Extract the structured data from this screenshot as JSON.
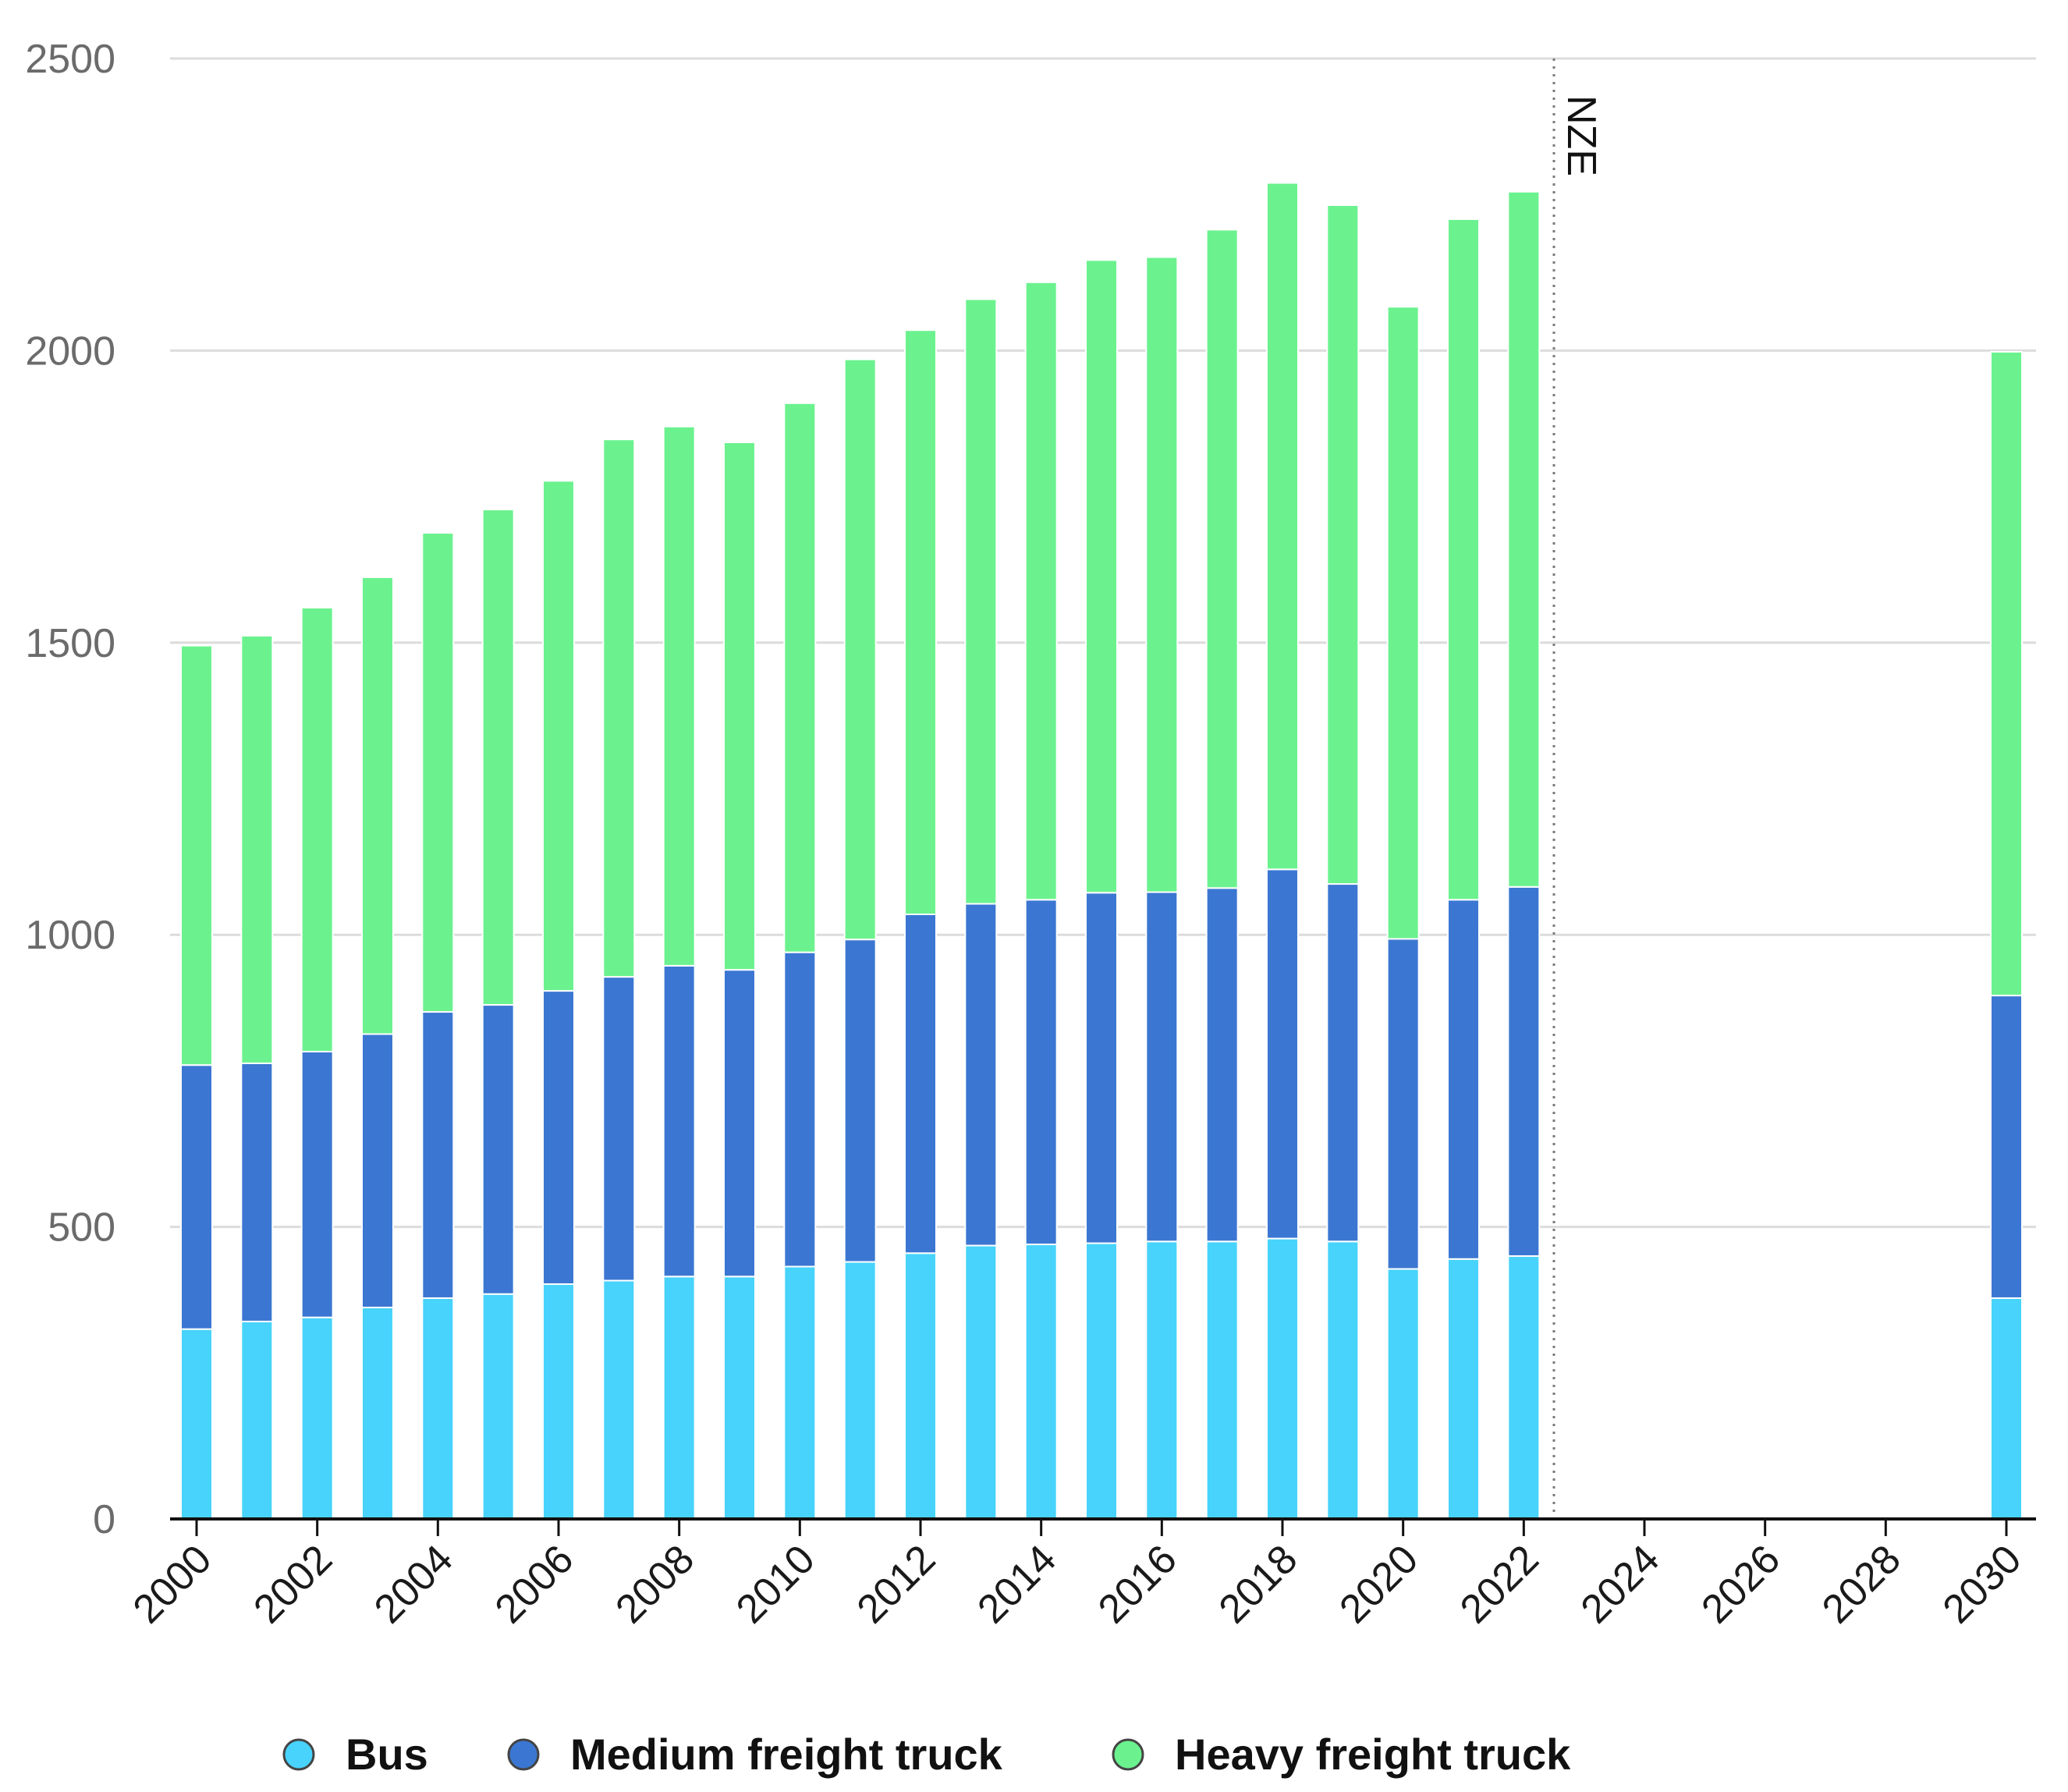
{
  "chart_data": {
    "type": "bar",
    "stacked": true,
    "title": "",
    "xlabel": "",
    "ylabel": "",
    "ylim": [
      0,
      2500
    ],
    "yticks": [
      "0",
      "500",
      "1000",
      "1500",
      "2000",
      "2500"
    ],
    "xticks": [
      "2000",
      "2002",
      "2004",
      "2006",
      "2008",
      "2010",
      "2012",
      "2014",
      "2016",
      "2018",
      "2020",
      "2022",
      "2024",
      "2026",
      "2028",
      "2030"
    ],
    "x_range": [
      2000,
      2030
    ],
    "categories": [
      2000,
      2001,
      2002,
      2003,
      2004,
      2005,
      2006,
      2007,
      2008,
      2009,
      2010,
      2011,
      2012,
      2013,
      2014,
      2015,
      2016,
      2017,
      2018,
      2019,
      2020,
      2021,
      2022,
      2030
    ],
    "series": [
      {
        "name": "Bus",
        "color": "#47d3fb",
        "values": [
          325,
          338,
          345,
          362,
          378,
          385,
          402,
          408,
          415,
          415,
          432,
          440,
          455,
          468,
          470,
          472,
          475,
          475,
          480,
          475,
          428,
          445,
          450,
          378
        ]
      },
      {
        "name": "Medium freight truck",
        "color": "#3b77d2",
        "values": [
          452,
          442,
          455,
          468,
          490,
          495,
          502,
          520,
          532,
          525,
          538,
          552,
          580,
          585,
          590,
          600,
          598,
          605,
          632,
          612,
          565,
          615,
          632,
          518
        ]
      },
      {
        "name": "Heavy freight truck",
        "color": "#6bf28e",
        "values": [
          718,
          732,
          760,
          782,
          820,
          848,
          873,
          920,
          923,
          903,
          940,
          993,
          1000,
          1035,
          1057,
          1083,
          1087,
          1127,
          1175,
          1162,
          1082,
          1165,
          1190,
          1102
        ]
      }
    ],
    "annotations": [
      {
        "text": "NZE",
        "x": 2022.5,
        "style": "dotted vertical line"
      }
    ],
    "legend": {
      "position": "bottom",
      "items": [
        "Bus",
        "Medium freight truck",
        "Heavy freight truck"
      ]
    },
    "grid": true
  }
}
